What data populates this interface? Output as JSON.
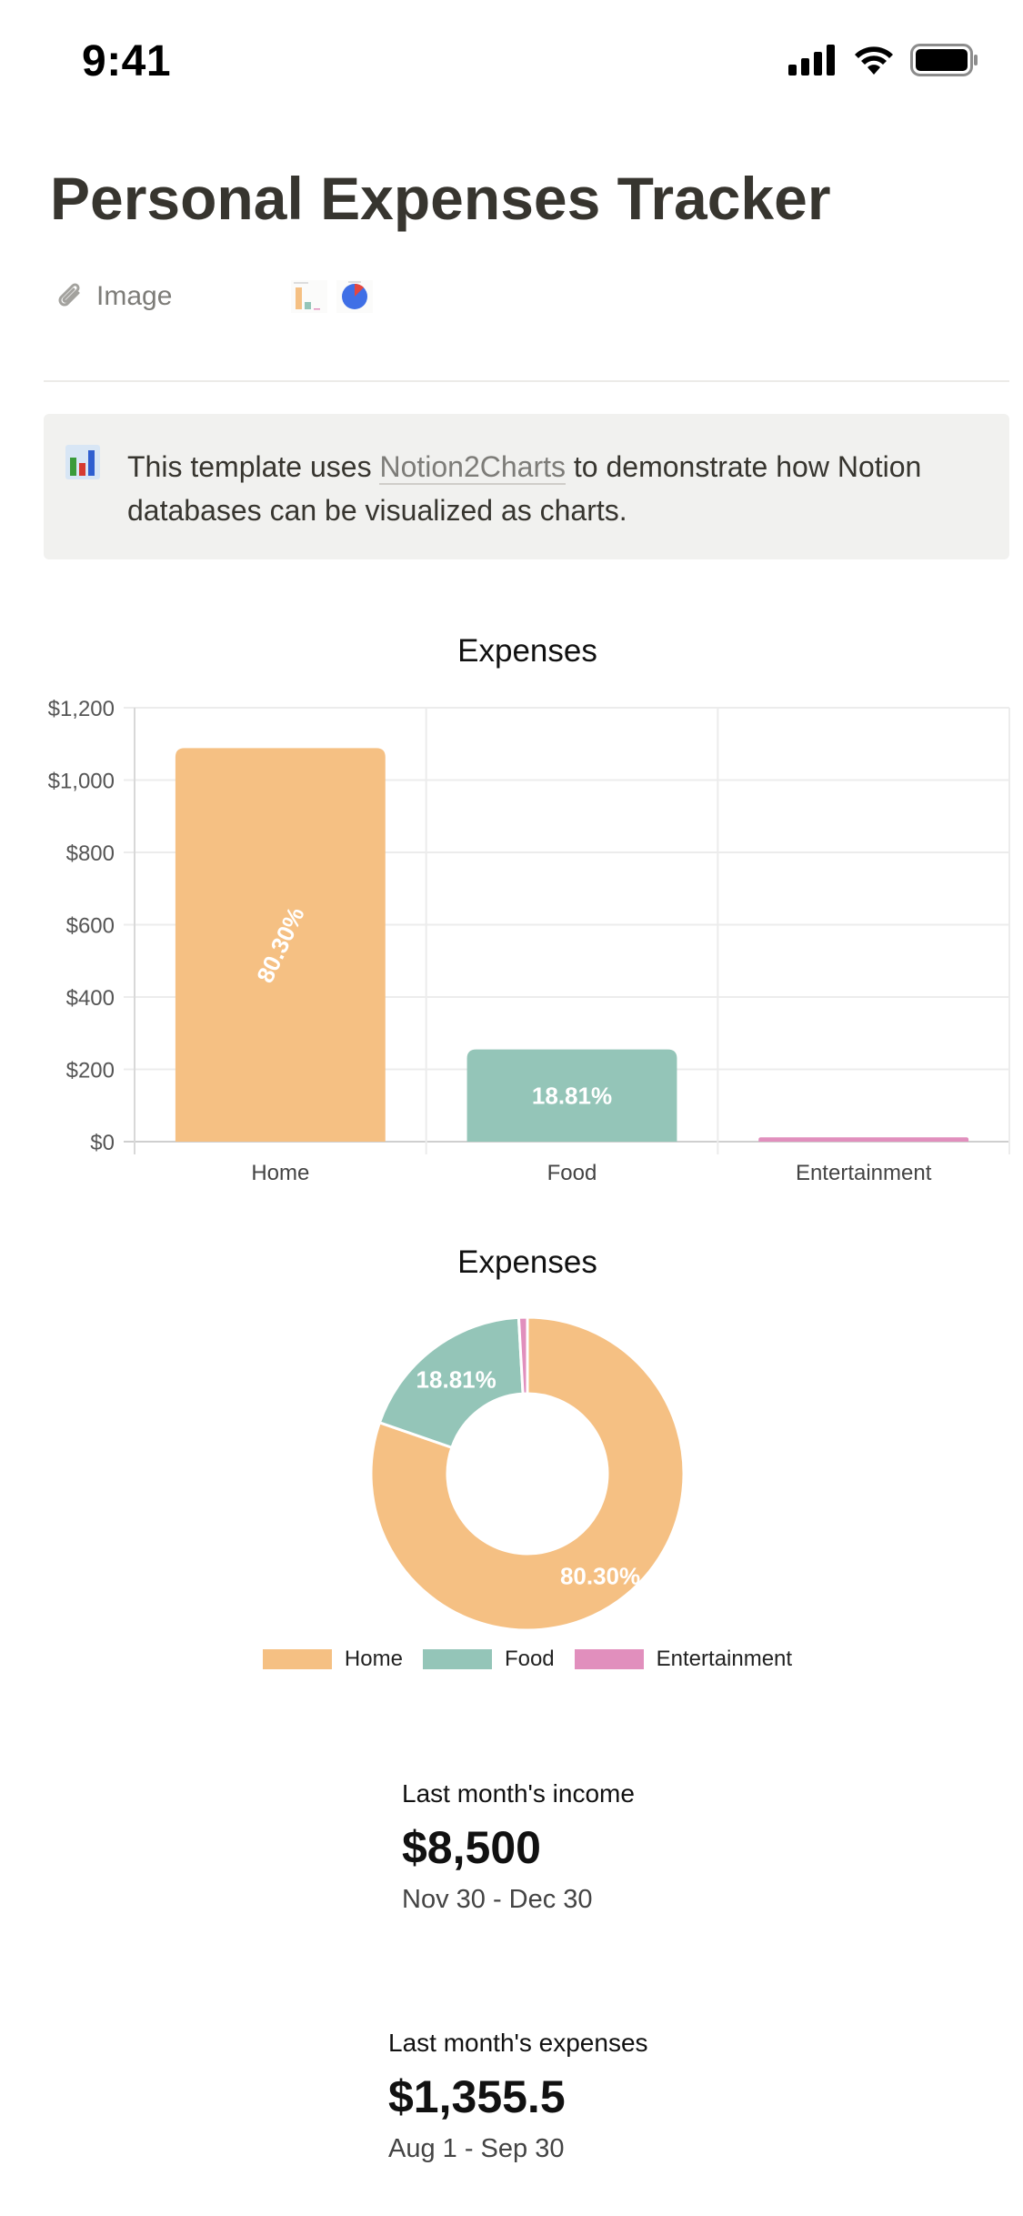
{
  "status_bar": {
    "time": "9:41"
  },
  "page": {
    "title": "Personal Expenses Tracker"
  },
  "property": {
    "label": "Image"
  },
  "callout": {
    "icon": "bar-chart-icon",
    "text_before": "This template uses ",
    "link_text": "Notion2Charts",
    "text_after": " to demonstrate how Notion databases can be visualized as charts."
  },
  "colors": {
    "home": "#f5c083",
    "food": "#94c5b8",
    "entertainment": "#e18fbd"
  },
  "chart_data": [
    {
      "type": "bar",
      "title": "Expenses",
      "categories": [
        "Home",
        "Food",
        "Entertainment"
      ],
      "values": [
        1088.5,
        255,
        12
      ],
      "data_labels": [
        "80.30%",
        "18.81%",
        ""
      ],
      "ylim": [
        0,
        1200
      ],
      "yticks": [
        0,
        200,
        400,
        600,
        800,
        1000,
        1200
      ],
      "ytick_labels": [
        "$0",
        "$200",
        "$400",
        "$600",
        "$800",
        "$1,000",
        "$1,200"
      ],
      "grid": true
    },
    {
      "type": "pie",
      "title": "Expenses",
      "categories": [
        "Home",
        "Food",
        "Entertainment"
      ],
      "values": [
        80.3,
        18.81,
        0.89
      ],
      "data_labels": [
        "80.30%",
        "18.81%",
        ""
      ],
      "legend_position": "bottom"
    }
  ],
  "stats": [
    {
      "label": "Last month's income",
      "value": "$8,500",
      "range": "Nov 30 - Dec 30"
    },
    {
      "label": "Last month's expenses",
      "value": "$1,355.5",
      "range": "Aug 1 - Sep 30"
    }
  ]
}
